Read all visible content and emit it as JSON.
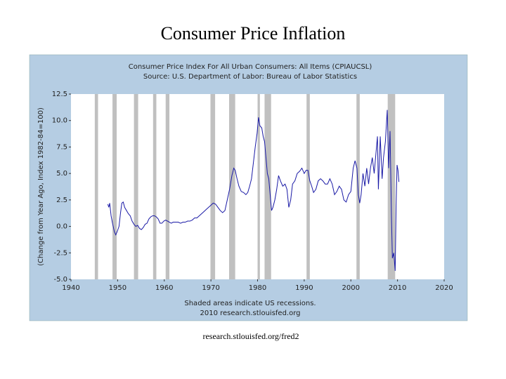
{
  "slide_title": "Consumer Price Inflation",
  "slide_footer": "research.stlouisfed.org/fred2",
  "chart_data": {
    "type": "line",
    "title": "Consumer Price Index For All Urban Consumers: All Items (CPIAUCSL)",
    "subtitle": "Source: U.S. Department of Labor: Bureau of Labor Statistics",
    "y_label": "(Change from Year Ago, Index 1982-84=100)",
    "note": "Shaded areas indicate US recessions.",
    "credit": "2010 research.stlouisfed.org",
    "xlim": [
      1940,
      2020
    ],
    "xticks": [
      1940,
      1950,
      1960,
      1970,
      1980,
      1990,
      2000,
      2010,
      2020
    ],
    "ylim": [
      -5,
      12.5
    ],
    "yticks": [
      {
        "value": -5,
        "label": "-5.0"
      },
      -2.5,
      {
        "value": 0,
        "label": "0.0"
      },
      2.5,
      {
        "value": 5,
        "label": "5.0"
      },
      7.5,
      {
        "value": 10,
        "label": "10.0"
      },
      12.5
    ],
    "recession_color": "#c0c0c0",
    "recessions": [
      [
        1945.1,
        1945.8
      ],
      [
        1948.9,
        1949.8
      ],
      [
        1953.5,
        1954.4
      ],
      [
        1957.6,
        1958.3
      ],
      [
        1960.3,
        1961.1
      ],
      [
        1969.9,
        1970.9
      ],
      [
        1973.9,
        1975.2
      ],
      [
        1980.0,
        1980.5
      ],
      [
        1981.5,
        1982.9
      ],
      [
        1990.5,
        1991.2
      ],
      [
        2001.2,
        2001.9
      ],
      [
        2007.9,
        2009.5
      ]
    ],
    "x": [
      1947.9,
      1948.1,
      1948.3,
      1948.6,
      1948.9,
      1949.3,
      1949.6,
      1949.9,
      1950.3,
      1950.6,
      1950.9,
      1951.2,
      1951.5,
      1951.9,
      1952.3,
      1952.7,
      1953.1,
      1953.5,
      1953.9,
      1954.3,
      1954.7,
      1955.1,
      1955.5,
      1955.9,
      1956.3,
      1956.7,
      1957.1,
      1957.5,
      1957.9,
      1958.3,
      1958.7,
      1959.1,
      1959.5,
      1959.9,
      1960.3,
      1960.7,
      1961.1,
      1961.5,
      1961.9,
      1962.5,
      1963,
      1963.5,
      1964,
      1964.5,
      1965,
      1965.5,
      1966,
      1966.5,
      1967,
      1967.5,
      1968,
      1968.5,
      1969,
      1969.5,
      1970,
      1970.5,
      1971,
      1971.5,
      1972,
      1972.5,
      1973,
      1973.5,
      1974,
      1974.5,
      1974.9,
      1975.2,
      1975.6,
      1976,
      1976.5,
      1977,
      1977.5,
      1977.9,
      1978.3,
      1978.7,
      1979.1,
      1979.5,
      1979.9,
      1980.2,
      1980.5,
      1980.9,
      1981.2,
      1981.5,
      1981.8,
      1982.1,
      1982.4,
      1982.7,
      1983,
      1983.3,
      1983.7,
      1984.1,
      1984.5,
      1984.9,
      1985.4,
      1985.9,
      1986.3,
      1986.7,
      1987.1,
      1987.5,
      1988,
      1988.5,
      1989,
      1989.5,
      1990,
      1990.4,
      1990.8,
      1991.2,
      1991.6,
      1992,
      1992.5,
      1993,
      1993.5,
      1994,
      1994.5,
      1995,
      1995.5,
      1996,
      1996.5,
      1997,
      1997.5,
      1998,
      1998.5,
      1999,
      1999.5,
      2000,
      2000.5,
      2000.9,
      2001.3,
      2001.6,
      2001.9,
      2002.2,
      2002.6,
      2003,
      2003.4,
      2003.8,
      2004.2,
      2004.6,
      2005,
      2005.4,
      2005.7,
      2005.9,
      2006.3,
      2006.7,
      2007,
      2007.4,
      2007.8,
      2008.1,
      2008.4,
      2008.7,
      2008.9,
      2009.2,
      2009.5,
      2009.7,
      2009.9,
      2010.1,
      2010.3
    ],
    "series": [
      {
        "name": "CPIAUCSL",
        "color": "#1a1aa6",
        "values": [
          2.1,
          1.8,
          2.2,
          1.0,
          0.3,
          -0.5,
          -0.8,
          -0.5,
          0.0,
          1.2,
          2.2,
          2.3,
          1.8,
          1.5,
          1.2,
          1.0,
          0.5,
          0.2,
          0.0,
          0.1,
          -0.2,
          -0.3,
          -0.1,
          0.2,
          0.3,
          0.7,
          0.9,
          1.0,
          1.0,
          0.9,
          0.7,
          0.3,
          0.3,
          0.5,
          0.6,
          0.5,
          0.4,
          0.3,
          0.4,
          0.4,
          0.4,
          0.3,
          0.4,
          0.4,
          0.5,
          0.5,
          0.6,
          0.8,
          0.8,
          1.0,
          1.2,
          1.4,
          1.6,
          1.8,
          2.0,
          2.2,
          2.1,
          1.8,
          1.5,
          1.3,
          1.5,
          2.5,
          3.5,
          4.8,
          5.5,
          5.3,
          4.5,
          3.8,
          3.3,
          3.2,
          3.0,
          3.2,
          3.8,
          4.5,
          6.0,
          7.5,
          8.8,
          10.3,
          9.5,
          9.3,
          8.5,
          8.0,
          6.5,
          5.0,
          4.5,
          3.0,
          1.5,
          1.8,
          2.5,
          3.5,
          4.8,
          4.3,
          3.8,
          4.0,
          3.5,
          1.8,
          2.5,
          4.0,
          4.3,
          5.0,
          5.2,
          5.5,
          5.0,
          5.3,
          5.3,
          4.3,
          3.8,
          3.2,
          3.5,
          4.3,
          4.5,
          4.3,
          4.0,
          4.0,
          4.5,
          4.0,
          3.0,
          3.3,
          3.8,
          3.5,
          2.5,
          2.3,
          3.0,
          3.3,
          5.5,
          6.2,
          5.5,
          3.0,
          2.2,
          3.0,
          5.0,
          3.8,
          5.5,
          4.0,
          5.5,
          6.5,
          5.0,
          7.0,
          8.5,
          3.5,
          8.5,
          4.5,
          6.5,
          8.0,
          11.0,
          5.5,
          9.0,
          1.0,
          -3.0,
          -2.5,
          -4.2,
          2.0,
          5.8,
          5.3,
          4.2
        ]
      }
    ]
  }
}
